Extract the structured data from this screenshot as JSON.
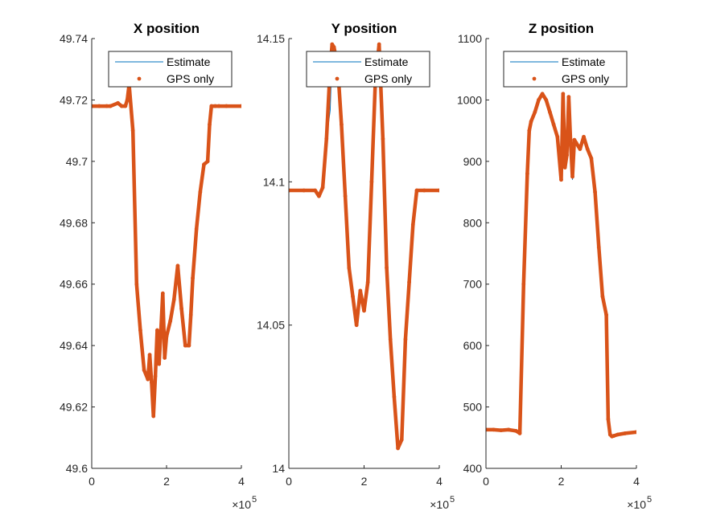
{
  "chart_data": [
    {
      "type": "line",
      "title": "X position",
      "xlim": [
        0,
        400000
      ],
      "ylim": [
        49.6,
        49.74
      ],
      "xticks": [
        0,
        2,
        4
      ],
      "xtick_labels": [
        "0",
        "2",
        "4"
      ],
      "yticks": [
        49.6,
        49.62,
        49.64,
        49.66,
        49.68,
        49.7,
        49.72,
        49.74
      ],
      "ytick_labels": [
        "49.6",
        "49.62",
        "49.64",
        "49.66",
        "49.68",
        "49.7",
        "49.72",
        "49.74"
      ],
      "x_exponent": "×10",
      "x_exponent_power": "5",
      "legend": {
        "position": "top-right",
        "entries": [
          "Estimate",
          "GPS only"
        ]
      },
      "series": [
        {
          "name": "Estimate",
          "style": "line",
          "color": "#0072BD",
          "x": [
            0,
            20000,
            40000,
            50000,
            70000,
            80000,
            90000,
            95000,
            100000,
            110000,
            120000,
            130000,
            140000,
            150000,
            155000,
            160000,
            165000,
            170000,
            175000,
            180000,
            185000,
            190000,
            195000,
            200000,
            210000,
            220000,
            230000,
            240000,
            250000,
            260000,
            265000,
            270000,
            280000,
            290000,
            300000,
            310000,
            315000,
            320000,
            330000,
            340000,
            360000,
            400000
          ],
          "y": [
            49.718,
            49.718,
            49.718,
            49.718,
            49.719,
            49.718,
            49.718,
            49.72,
            49.725,
            49.71,
            49.66,
            49.645,
            49.632,
            49.629,
            49.637,
            49.628,
            49.617,
            49.63,
            49.645,
            49.634,
            49.645,
            49.657,
            49.636,
            49.643,
            49.648,
            49.655,
            49.666,
            49.652,
            49.64,
            49.64,
            49.65,
            49.662,
            49.678,
            49.69,
            49.699,
            49.7,
            49.712,
            49.718,
            49.718,
            49.718,
            49.718,
            49.718
          ]
        },
        {
          "name": "GPS only",
          "style": "dots",
          "color": "#D95319",
          "x": [
            0,
            20000,
            40000,
            50000,
            70000,
            80000,
            90000,
            95000,
            100000,
            110000,
            120000,
            130000,
            140000,
            150000,
            155000,
            160000,
            165000,
            170000,
            175000,
            180000,
            185000,
            190000,
            195000,
            200000,
            210000,
            220000,
            230000,
            240000,
            250000,
            260000,
            265000,
            270000,
            280000,
            290000,
            300000,
            310000,
            315000,
            320000,
            330000,
            340000,
            360000,
            400000
          ],
          "y": [
            49.718,
            49.718,
            49.718,
            49.718,
            49.719,
            49.718,
            49.718,
            49.72,
            49.725,
            49.71,
            49.66,
            49.645,
            49.632,
            49.629,
            49.637,
            49.628,
            49.617,
            49.63,
            49.645,
            49.634,
            49.645,
            49.657,
            49.636,
            49.643,
            49.648,
            49.655,
            49.666,
            49.652,
            49.64,
            49.64,
            49.65,
            49.662,
            49.678,
            49.69,
            49.699,
            49.7,
            49.712,
            49.718,
            49.718,
            49.718,
            49.718,
            49.718
          ]
        }
      ]
    },
    {
      "type": "line",
      "title": "Y position",
      "xlim": [
        0,
        400000
      ],
      "ylim": [
        14.0,
        14.15
      ],
      "xticks": [
        0,
        2,
        4
      ],
      "xtick_labels": [
        "0",
        "2",
        "4"
      ],
      "yticks": [
        14.0,
        14.05,
        14.1,
        14.15
      ],
      "ytick_labels": [
        "14",
        "14.05",
        "14.1",
        "14.15"
      ],
      "x_exponent": "×10",
      "x_exponent_power": "5",
      "legend": {
        "position": "top-right",
        "entries": [
          "Estimate",
          "GPS only"
        ]
      },
      "series": [
        {
          "name": "Estimate",
          "style": "line",
          "color": "#0072BD",
          "x": [
            0,
            40000,
            70000,
            80000,
            90000,
            100000,
            110000,
            115000,
            120000,
            130000,
            140000,
            150000,
            160000,
            170000,
            180000,
            190000,
            200000,
            210000,
            220000,
            230000,
            240000,
            250000,
            260000,
            270000,
            280000,
            290000,
            300000,
            310000,
            320000,
            330000,
            340000,
            360000,
            400000
          ],
          "y": [
            14.097,
            14.097,
            14.097,
            14.095,
            14.098,
            14.115,
            14.125,
            14.145,
            14.147,
            14.14,
            14.12,
            14.095,
            14.07,
            14.06,
            14.05,
            14.062,
            14.055,
            14.065,
            14.1,
            14.135,
            14.145,
            14.115,
            14.07,
            14.045,
            14.025,
            14.007,
            14.01,
            14.045,
            14.065,
            14.085,
            14.097,
            14.097,
            14.097
          ]
        },
        {
          "name": "GPS only",
          "style": "dots",
          "color": "#D95319",
          "x": [
            0,
            40000,
            70000,
            80000,
            90000,
            100000,
            110000,
            115000,
            120000,
            130000,
            140000,
            150000,
            160000,
            170000,
            180000,
            190000,
            200000,
            210000,
            220000,
            230000,
            240000,
            250000,
            260000,
            270000,
            280000,
            290000,
            300000,
            310000,
            320000,
            330000,
            340000,
            360000,
            400000
          ],
          "y": [
            14.097,
            14.097,
            14.097,
            14.095,
            14.098,
            14.115,
            14.14,
            14.148,
            14.147,
            14.14,
            14.12,
            14.095,
            14.07,
            14.06,
            14.05,
            14.062,
            14.055,
            14.065,
            14.1,
            14.135,
            14.148,
            14.115,
            14.07,
            14.045,
            14.025,
            14.007,
            14.01,
            14.045,
            14.065,
            14.085,
            14.097,
            14.097,
            14.097
          ]
        }
      ]
    },
    {
      "type": "line",
      "title": "Z position",
      "xlim": [
        0,
        400000
      ],
      "ylim": [
        400,
        1100
      ],
      "xticks": [
        0,
        2,
        4
      ],
      "xtick_labels": [
        "0",
        "2",
        "4"
      ],
      "yticks": [
        400,
        500,
        600,
        700,
        800,
        900,
        1000,
        1100
      ],
      "ytick_labels": [
        "400",
        "500",
        "600",
        "700",
        "800",
        "900",
        "1000",
        "1100"
      ],
      "x_exponent": "×10",
      "x_exponent_power": "5",
      "legend": {
        "position": "top-right",
        "entries": [
          "Estimate",
          "GPS only"
        ]
      },
      "series": [
        {
          "name": "Estimate",
          "style": "line",
          "color": "#0072BD",
          "x": [
            0,
            20000,
            40000,
            60000,
            80000,
            90000,
            100000,
            110000,
            115000,
            120000,
            130000,
            140000,
            150000,
            160000,
            170000,
            180000,
            190000,
            200000,
            205000,
            210000,
            215000,
            220000,
            225000,
            230000,
            235000,
            240000,
            250000,
            260000,
            270000,
            280000,
            290000,
            300000,
            310000,
            320000,
            325000,
            330000,
            335000,
            340000,
            350000,
            370000,
            400000
          ],
          "y": [
            463,
            463,
            462,
            463,
            461,
            457,
            700,
            880,
            950,
            965,
            980,
            1000,
            1010,
            1000,
            980,
            960,
            940,
            870,
            1010,
            890,
            910,
            1005,
            930,
            870,
            935,
            930,
            920,
            940,
            920,
            905,
            850,
            760,
            680,
            650,
            480,
            455,
            452,
            453,
            455,
            457,
            459
          ]
        },
        {
          "name": "GPS only",
          "style": "dots",
          "color": "#D95319",
          "x": [
            0,
            20000,
            40000,
            60000,
            80000,
            90000,
            100000,
            110000,
            115000,
            120000,
            130000,
            140000,
            150000,
            160000,
            170000,
            180000,
            190000,
            200000,
            205000,
            210000,
            215000,
            220000,
            225000,
            230000,
            235000,
            240000,
            250000,
            260000,
            270000,
            280000,
            290000,
            300000,
            310000,
            320000,
            325000,
            330000,
            335000,
            340000,
            350000,
            370000,
            400000
          ],
          "y": [
            463,
            463,
            462,
            463,
            461,
            457,
            700,
            880,
            950,
            965,
            980,
            1000,
            1010,
            1000,
            980,
            960,
            940,
            870,
            1010,
            890,
            910,
            1005,
            930,
            875,
            935,
            930,
            920,
            940,
            920,
            905,
            850,
            760,
            680,
            650,
            480,
            455,
            452,
            453,
            455,
            457,
            459
          ]
        }
      ]
    }
  ]
}
